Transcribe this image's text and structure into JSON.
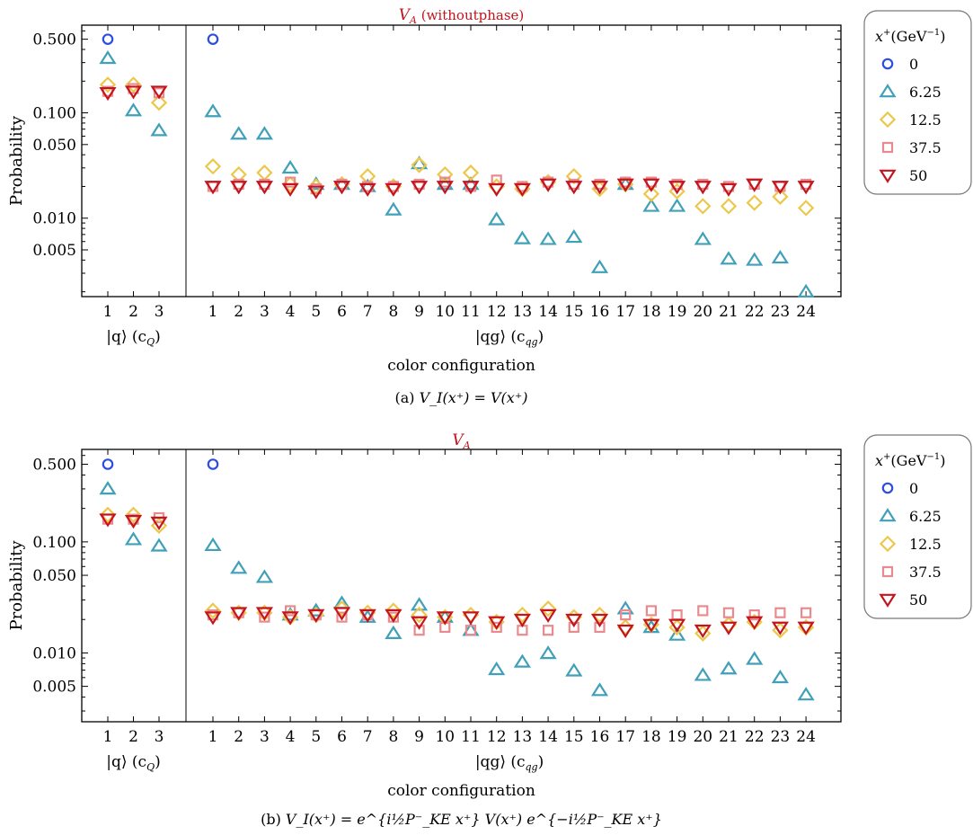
{
  "chart_data": [
    {
      "type": "scatter",
      "title_var": "V",
      "title_sub": "A",
      "title_extra": " (withoutphase)",
      "ylabel": "Probability",
      "xlabel": "color configuration",
      "yscale": "log",
      "ylim": [
        0.0018,
        0.68
      ],
      "yticks": [
        "0.500",
        "0.100",
        "0.050",
        "0.010",
        "0.005"
      ],
      "yticks_values": [
        0.5,
        0.1,
        0.05,
        0.01,
        0.005
      ],
      "groups": [
        {
          "label": "|q⟩ (c",
          "label_sub": "Q",
          "categories": [
            "1",
            "2",
            "3"
          ]
        },
        {
          "label": "|qg⟩ (c",
          "label_sub": "qg",
          "categories": [
            "1",
            "2",
            "3",
            "4",
            "5",
            "6",
            "7",
            "8",
            "9",
            "10",
            "11",
            "12",
            "13",
            "14",
            "15",
            "16",
            "17",
            "18",
            "19",
            "20",
            "21",
            "22",
            "23",
            "24"
          ]
        }
      ],
      "caption_prefix": "(a)",
      "caption_formula": "V_I(x⁺) = V(x⁺)",
      "series": [
        {
          "name": "0",
          "marker": "circle",
          "color": "#2c4ee0",
          "q": [
            0.5,
            null,
            null
          ],
          "qg": [
            0.5,
            null,
            null,
            null,
            null,
            null,
            null,
            null,
            null,
            null,
            null,
            null,
            null,
            null,
            null,
            null,
            null,
            null,
            null,
            null,
            null,
            null,
            null,
            null
          ]
        },
        {
          "name": "6.25",
          "marker": "triangle-up",
          "color": "#3fa0b8",
          "q": [
            0.33,
            0.105,
            0.068
          ],
          "qg": [
            0.103,
            0.063,
            0.063,
            0.03,
            0.021,
            0.021,
            0.02,
            0.012,
            0.033,
            0.021,
            0.021,
            0.0097,
            0.0064,
            0.0063,
            0.0066,
            0.0034,
            0.021,
            0.013,
            0.013,
            0.0063,
            0.0041,
            0.004,
            0.0042,
            0.002
          ]
        },
        {
          "name": "12.5",
          "marker": "diamond",
          "color": "#ecc84a",
          "q": [
            0.185,
            0.185,
            0.125
          ],
          "qg": [
            0.031,
            0.026,
            0.027,
            0.021,
            0.02,
            0.021,
            0.025,
            0.02,
            0.032,
            0.026,
            0.027,
            0.02,
            0.019,
            0.022,
            0.025,
            0.019,
            0.021,
            0.017,
            0.018,
            0.013,
            0.013,
            0.014,
            0.016,
            0.0125
          ]
        },
        {
          "name": "37.5",
          "marker": "square",
          "color": "#e98a8e",
          "q": [
            0.16,
            0.17,
            0.155
          ],
          "qg": [
            0.02,
            0.021,
            0.021,
            0.022,
            0.019,
            0.021,
            0.02,
            0.02,
            0.021,
            0.022,
            0.02,
            0.023,
            0.02,
            0.022,
            0.021,
            0.021,
            0.022,
            0.022,
            0.021,
            0.021,
            0.02,
            0.021,
            0.02,
            0.021
          ]
        },
        {
          "name": "50",
          "marker": "triangle-down",
          "color": "#c4141e",
          "q": [
            0.155,
            0.16,
            0.16
          ],
          "qg": [
            0.02,
            0.02,
            0.02,
            0.019,
            0.018,
            0.02,
            0.019,
            0.019,
            0.02,
            0.02,
            0.02,
            0.019,
            0.019,
            0.021,
            0.02,
            0.02,
            0.021,
            0.021,
            0.02,
            0.02,
            0.019,
            0.021,
            0.02,
            0.02
          ]
        }
      ]
    },
    {
      "type": "scatter",
      "title_var": "V",
      "title_sub": "A",
      "title_extra": "",
      "ylabel": "Probability",
      "xlabel": "color configuration",
      "yscale": "log",
      "ylim": [
        0.0024,
        0.68
      ],
      "yticks": [
        "0.500",
        "0.100",
        "0.050",
        "0.010",
        "0.005"
      ],
      "yticks_values": [
        0.5,
        0.1,
        0.05,
        0.01,
        0.005
      ],
      "groups": [
        {
          "label": "|q⟩ (c",
          "label_sub": "Q",
          "categories": [
            "1",
            "2",
            "3"
          ]
        },
        {
          "label": "|qg⟩ (c",
          "label_sub": "qg",
          "categories": [
            "1",
            "2",
            "3",
            "4",
            "5",
            "6",
            "7",
            "8",
            "9",
            "10",
            "11",
            "12",
            "13",
            "14",
            "15",
            "16",
            "17",
            "18",
            "19",
            "20",
            "21",
            "22",
            "23",
            "24"
          ]
        }
      ],
      "caption_prefix": "(b)",
      "caption_formula": "V_I(x⁺) = e^{i½P⁻_KE x⁺} V(x⁺) e^{−i½P⁻_KE x⁺}",
      "series": [
        {
          "name": "0",
          "marker": "circle",
          "color": "#2c4ee0",
          "q": [
            0.5,
            null,
            null
          ],
          "qg": [
            0.5,
            null,
            null,
            null,
            null,
            null,
            null,
            null,
            null,
            null,
            null,
            null,
            null,
            null,
            null,
            null,
            null,
            null,
            null,
            null,
            null,
            null,
            null,
            null
          ]
        },
        {
          "name": "6.25",
          "marker": "triangle-up",
          "color": "#3fa0b8",
          "q": [
            0.3,
            0.105,
            0.092
          ],
          "qg": [
            0.093,
            0.058,
            0.048,
            0.022,
            0.024,
            0.028,
            0.021,
            0.015,
            0.027,
            0.021,
            0.016,
            0.0071,
            0.0083,
            0.0099,
            0.0069,
            0.0046,
            0.025,
            0.017,
            0.0145,
            0.0063,
            0.0072,
            0.0088,
            0.006,
            0.0042
          ]
        },
        {
          "name": "12.5",
          "marker": "diamond",
          "color": "#ecc84a",
          "q": [
            0.175,
            0.175,
            0.14
          ],
          "qg": [
            0.024,
            0.023,
            0.023,
            0.021,
            0.022,
            0.025,
            0.023,
            0.024,
            0.022,
            0.021,
            0.022,
            0.019,
            0.022,
            0.025,
            0.021,
            0.022,
            0.017,
            0.018,
            0.017,
            0.015,
            0.018,
            0.019,
            0.016,
            0.017
          ]
        },
        {
          "name": "37.5",
          "marker": "square",
          "color": "#e98a8e",
          "q": [
            0.16,
            0.16,
            0.165
          ],
          "qg": [
            0.022,
            0.023,
            0.021,
            0.024,
            0.022,
            0.021,
            0.022,
            0.021,
            0.016,
            0.017,
            0.016,
            0.017,
            0.016,
            0.016,
            0.017,
            0.017,
            0.022,
            0.024,
            0.022,
            0.024,
            0.023,
            0.022,
            0.023,
            0.023
          ]
        },
        {
          "name": "50",
          "marker": "triangle-down",
          "color": "#c4141e",
          "q": [
            0.16,
            0.155,
            0.15
          ],
          "qg": [
            0.021,
            0.023,
            0.023,
            0.021,
            0.022,
            0.023,
            0.022,
            0.022,
            0.019,
            0.021,
            0.021,
            0.019,
            0.02,
            0.022,
            0.02,
            0.02,
            0.016,
            0.018,
            0.018,
            0.016,
            0.017,
            0.019,
            0.017,
            0.017
          ]
        }
      ]
    }
  ],
  "legend": {
    "title_var": "x",
    "title_sup": "+",
    "title_unit": "(GeV",
    "title_unit_sup": "−1",
    "title_close": ")",
    "entries": [
      "0",
      "6.25",
      "12.5",
      "37.5",
      "50"
    ]
  }
}
